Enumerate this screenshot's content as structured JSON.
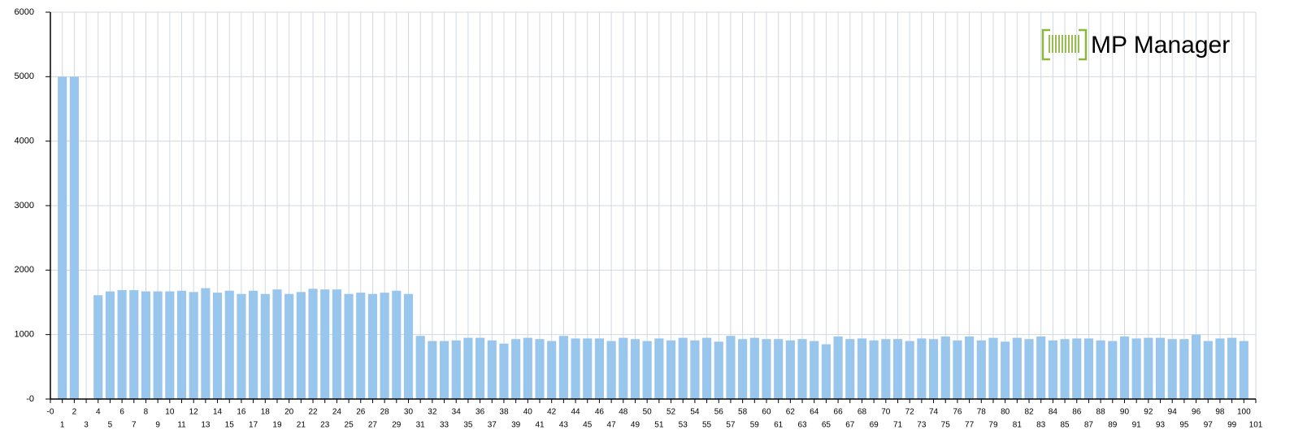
{
  "chart_data": {
    "type": "bar",
    "logo_text": "MP Manager",
    "x": [
      1,
      2,
      3,
      4,
      5,
      6,
      7,
      8,
      9,
      10,
      11,
      12,
      13,
      14,
      15,
      16,
      17,
      18,
      19,
      20,
      21,
      22,
      23,
      24,
      25,
      26,
      27,
      28,
      29,
      30,
      31,
      32,
      33,
      34,
      35,
      36,
      37,
      38,
      39,
      40,
      41,
      42,
      43,
      44,
      45,
      46,
      47,
      48,
      49,
      50,
      51,
      52,
      53,
      54,
      55,
      56,
      57,
      58,
      59,
      60,
      61,
      62,
      63,
      64,
      65,
      66,
      67,
      68,
      69,
      70,
      71,
      72,
      73,
      74,
      75,
      76,
      77,
      78,
      79,
      80,
      81,
      82,
      83,
      84,
      85,
      86,
      87,
      88,
      89,
      90,
      91,
      92,
      93,
      94,
      95,
      96,
      97,
      98,
      99,
      100
    ],
    "values": [
      5000,
      5000,
      0,
      1610,
      1670,
      1690,
      1690,
      1670,
      1670,
      1670,
      1680,
      1660,
      1720,
      1650,
      1680,
      1630,
      1680,
      1630,
      1700,
      1630,
      1660,
      1710,
      1700,
      1700,
      1630,
      1650,
      1630,
      1650,
      1680,
      1630,
      980,
      900,
      900,
      910,
      950,
      950,
      910,
      860,
      930,
      950,
      930,
      900,
      980,
      940,
      940,
      940,
      900,
      950,
      930,
      900,
      940,
      910,
      950,
      910,
      950,
      890,
      980,
      930,
      950,
      930,
      930,
      910,
      930,
      900,
      850,
      970,
      930,
      940,
      910,
      930,
      930,
      900,
      940,
      930,
      970,
      910,
      970,
      910,
      950,
      890,
      950,
      930,
      970,
      910,
      930,
      940,
      940,
      910,
      900,
      970,
      940,
      950,
      950,
      930,
      930,
      1000,
      900,
      940,
      950,
      900
    ],
    "color": "#99c6ec",
    "xlim": [
      0,
      101
    ],
    "xticks": [
      {
        "value": 0,
        "label": "-0"
      },
      1,
      2,
      3,
      4,
      5,
      6,
      7,
      8,
      9,
      10,
      11,
      12,
      13,
      14,
      15,
      16,
      17,
      18,
      19,
      20,
      21,
      22,
      23,
      24,
      25,
      26,
      27,
      28,
      29,
      30,
      31,
      32,
      33,
      34,
      35,
      36,
      37,
      38,
      39,
      40,
      41,
      42,
      43,
      44,
      45,
      46,
      47,
      48,
      49,
      50,
      51,
      52,
      53,
      54,
      55,
      56,
      57,
      58,
      59,
      60,
      61,
      62,
      63,
      64,
      65,
      66,
      67,
      68,
      69,
      70,
      71,
      72,
      73,
      74,
      75,
      76,
      77,
      78,
      79,
      80,
      81,
      82,
      83,
      84,
      85,
      86,
      87,
      88,
      89,
      90,
      91,
      92,
      93,
      94,
      95,
      96,
      97,
      98,
      99,
      100,
      101
    ],
    "ylim": [
      0,
      6000
    ],
    "yticks": [
      {
        "value": 0,
        "label": "-0"
      },
      1000,
      2000,
      3000,
      4000,
      5000,
      6000
    ],
    "grid": true
  }
}
